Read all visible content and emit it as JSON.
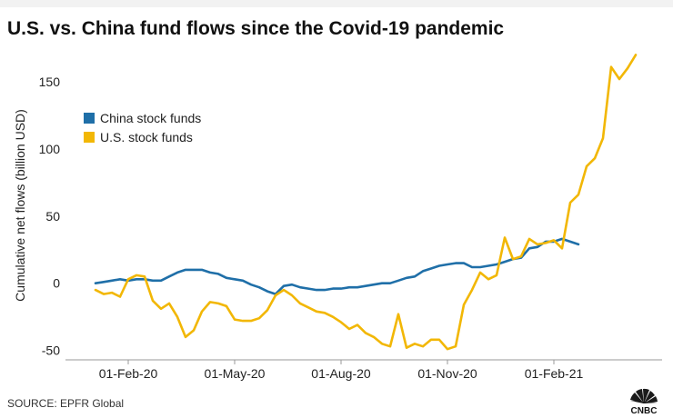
{
  "title": "U.S. vs. China fund flows since the Covid-19 pandemic",
  "source": "SOURCE: EPFR Global",
  "logo_text": "CNBC",
  "chart_data": {
    "type": "line",
    "title": "U.S. vs. China fund flows since the Covid-19 pandemic",
    "xlabel": "",
    "ylabel": "Cumulative net flows (billion USD)",
    "ylim": [
      -57,
      175
    ],
    "yticks": [
      -50,
      0,
      50,
      100,
      150
    ],
    "x_tick_labels": [
      "01-Feb-20",
      "01-May-20",
      "01-Aug-20",
      "01-Nov-20",
      "01-Feb-21"
    ],
    "x_tick_positions": [
      4,
      17,
      30,
      43,
      56
    ],
    "legend": "top-left",
    "grid": false,
    "series": [
      {
        "name": "China stock funds",
        "color": "#1f6fa8",
        "values": [
          0,
          1,
          2,
          3,
          2,
          3,
          3,
          2,
          2,
          5,
          8,
          10,
          10,
          10,
          8,
          7,
          4,
          3,
          2,
          -1,
          -3,
          -6,
          -8,
          -2,
          -1,
          -3,
          -4,
          -5,
          -5,
          -4,
          -4,
          -3,
          -3,
          -2,
          -1,
          0,
          0,
          2,
          4,
          5,
          9,
          11,
          13,
          14,
          15,
          15,
          12,
          12,
          13,
          14,
          16,
          18,
          19,
          26,
          27,
          31,
          31,
          33,
          31,
          29
        ]
      },
      {
        "name": "U.S. stock funds",
        "color": "#f2b705",
        "values": [
          -5,
          -8,
          -7,
          -10,
          3,
          6,
          5,
          -13,
          -19,
          -15,
          -25,
          -40,
          -35,
          -21,
          -14,
          -15,
          -17,
          -27,
          -28,
          -28,
          -26,
          -20,
          -9,
          -5,
          -9,
          -15,
          -18,
          -21,
          -22,
          -25,
          -29,
          -34,
          -31,
          -37,
          -40,
          -45,
          -47,
          -23,
          -48,
          -45,
          -47,
          -42,
          -42,
          -49,
          -47,
          -16,
          -5,
          8,
          3,
          6,
          34,
          18,
          20,
          33,
          29,
          30,
          32,
          26,
          60,
          66,
          87,
          93,
          108,
          161,
          152,
          160,
          170
        ]
      }
    ]
  }
}
